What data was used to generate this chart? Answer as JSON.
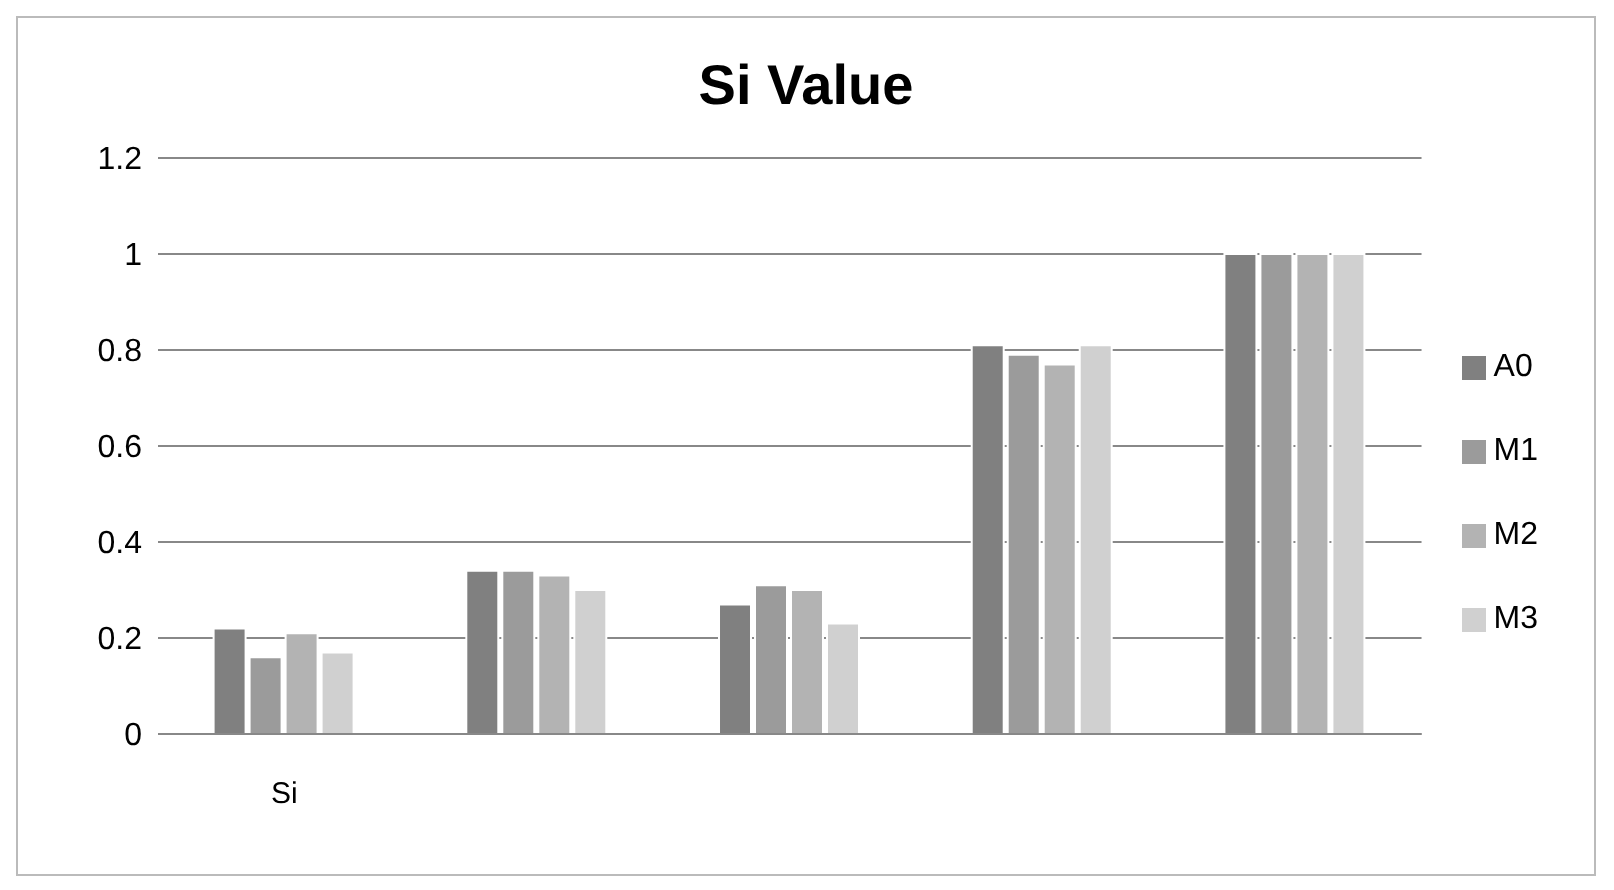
{
  "chart_data": {
    "type": "bar",
    "title": "Si Value",
    "categories": [
      "Si",
      null,
      null,
      null,
      null
    ],
    "series": [
      {
        "name": "A0",
        "color": "#808080",
        "values": [
          0.22,
          0.34,
          0.27,
          0.81,
          1
        ]
      },
      {
        "name": "M1",
        "color": "#9b9b9b",
        "values": [
          0.16,
          0.34,
          0.31,
          0.79,
          1
        ]
      },
      {
        "name": "M2",
        "color": "#b3b3b3",
        "values": [
          0.21,
          0.33,
          0.3,
          0.77,
          1
        ]
      },
      {
        "name": "M3",
        "color": "#d0d0d0",
        "values": [
          0.17,
          0.3,
          0.23,
          0.81,
          1
        ]
      }
    ],
    "ylim": [
      0,
      1.2
    ],
    "yticks": [
      0,
      0.2,
      0.4,
      0.6,
      0.8,
      1,
      1.2
    ],
    "grid": "y",
    "legend": "right"
  }
}
